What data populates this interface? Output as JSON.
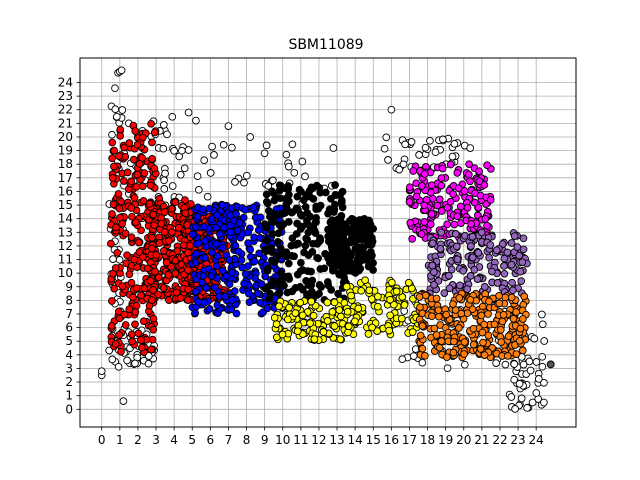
{
  "chart_data": {
    "type": "scatter",
    "title": "SBM11089",
    "xlabel": "",
    "ylabel": "",
    "xlim": [
      -1.2,
      26.2
    ],
    "ylim": [
      -1.3,
      25.8
    ],
    "x_ticks": [
      0,
      1,
      2,
      3,
      4,
      5,
      6,
      7,
      8,
      9,
      10,
      11,
      12,
      13,
      14,
      15,
      16,
      17,
      18,
      19,
      20,
      21,
      22,
      23,
      24
    ],
    "y_ticks": [
      0,
      1,
      2,
      3,
      4,
      5,
      6,
      7,
      8,
      9,
      10,
      11,
      12,
      13,
      14,
      15,
      16,
      17,
      18,
      19,
      20,
      21,
      22,
      23,
      24
    ],
    "grid": true,
    "legend": "none",
    "marker_edge_color": "#000000",
    "series": [
      {
        "color": "#ffffff",
        "regions": [
          [
            0.4,
            1.2,
            3.0,
            24.8
          ],
          [
            1.2,
            4.6,
            14.0,
            21.5
          ],
          [
            3.0,
            13.5,
            15.0,
            19.5
          ],
          [
            15.5,
            20.5,
            17.5,
            20.0
          ],
          [
            16.5,
            24.5,
            3.0,
            8.0
          ],
          [
            22.5,
            24.5,
            0.0,
            4.0
          ],
          [
            0.4,
            3.0,
            3.3,
            6.0
          ]
        ],
        "count": 260
      },
      {
        "color": "#ff0000",
        "regions": [
          [
            0.5,
            3.0,
            4.2,
            21.0
          ],
          [
            2.5,
            5.0,
            8.0,
            15.5
          ],
          [
            4.5,
            7.0,
            8.0,
            14.5
          ]
        ],
        "count": 760
      },
      {
        "color": "#0000ff",
        "regions": [
          [
            5.0,
            7.5,
            7.0,
            15.0
          ],
          [
            7.0,
            10.0,
            7.0,
            15.0
          ]
        ],
        "count": 320
      },
      {
        "color": "#000000",
        "regions": [
          [
            9.0,
            13.5,
            8.0,
            16.5
          ],
          [
            12.5,
            15.0,
            10.0,
            14.0
          ]
        ],
        "count": 420
      },
      {
        "color": "#ffff00",
        "regions": [
          [
            9.5,
            13.5,
            5.0,
            8.0
          ],
          [
            13.5,
            17.5,
            5.5,
            9.5
          ]
        ],
        "count": 220
      },
      {
        "color": "#ff00ff",
        "regions": [
          [
            17.0,
            21.5,
            12.5,
            18.0
          ]
        ],
        "count": 200
      },
      {
        "color": "#9467bd",
        "regions": [
          [
            18.0,
            23.5,
            8.5,
            13.0
          ]
        ],
        "count": 180
      },
      {
        "color": "#ff7f0e",
        "regions": [
          [
            17.5,
            23.5,
            3.8,
            8.5
          ]
        ],
        "count": 260
      },
      {
        "color": "#ffffff",
        "points": [
          [
            0,
            2.5
          ],
          [
            0,
            2.8
          ],
          [
            1.2,
            0.6
          ],
          [
            23.2,
            0.8
          ],
          [
            23.8,
            0.5
          ],
          [
            23.5,
            0.1
          ],
          [
            24.8,
            3.3
          ],
          [
            16.0,
            22.0
          ],
          [
            4.8,
            21.8
          ],
          [
            5.2,
            21.2
          ],
          [
            7.0,
            20.8
          ],
          [
            8.2,
            20.0
          ],
          [
            9.0,
            18.8
          ],
          [
            10.2,
            18.7
          ],
          [
            1.0,
            24.8
          ],
          [
            1.1,
            24.9
          ]
        ],
        "count": 0
      },
      {
        "color": "#555555",
        "points": [
          [
            24.8,
            3.3
          ]
        ],
        "count": 0
      }
    ]
  }
}
